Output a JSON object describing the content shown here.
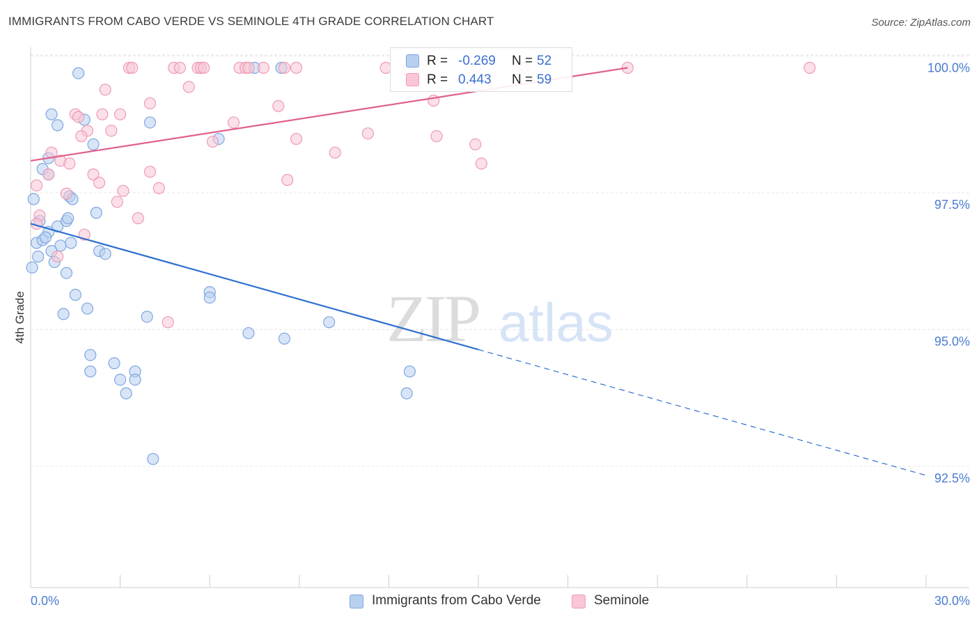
{
  "title": "IMMIGRANTS FROM CABO VERDE VS SEMINOLE 4TH GRADE CORRELATION CHART",
  "source": "Source: ZipAtlas.com",
  "watermark": {
    "zip": "ZIP",
    "atlas": "atlas"
  },
  "colors": {
    "blue_fill": "#b8d0f0",
    "blue_stroke": "#7ea6e0",
    "blue_line": "#2d6fd0",
    "pink_fill": "#f8c6d6",
    "pink_stroke": "#ee9ab6",
    "pink_line": "#e0608a",
    "axis_text": "#4a7cd0",
    "grid": "#e6e6e6"
  },
  "legend": {
    "rows": [
      {
        "r_label": "R =",
        "r_value": "-0.269",
        "n_label": "N =",
        "n_value": "52",
        "color": "blue"
      },
      {
        "r_label": "R =",
        "r_value": " 0.443",
        "n_label": "N =",
        "n_value": "59",
        "color": "pink"
      }
    ]
  },
  "bottom_legend": [
    {
      "label": "Immigrants from Cabo Verde",
      "color": "blue"
    },
    {
      "label": "Seminole",
      "color": "pink"
    }
  ],
  "chart_data": {
    "type": "scatter",
    "title": "IMMIGRANTS FROM CABO VERDE VS SEMINOLE 4TH GRADE CORRELATION CHART",
    "xlabel": "",
    "ylabel": "4th Grade",
    "xlim": [
      0,
      30
    ],
    "ylim": [
      90.5,
      100.45
    ],
    "x_tick_labels": [
      "0.0%",
      "30.0%"
    ],
    "y_ticks": [
      92.5,
      95.0,
      97.5,
      100.0
    ],
    "y_tick_labels": [
      "92.5%",
      "95.0%",
      "97.5%",
      "100.0%"
    ],
    "grid": true,
    "legend_position": "top-center",
    "series": [
      {
        "name": "Immigrants from Cabo Verde",
        "color": "blue",
        "trend": {
          "x0": 0.0,
          "y0": 97.15,
          "x1": 15.0,
          "y1": 94.85,
          "dash_to_x": 30.0,
          "dash_to_y": 92.55
        },
        "points": [
          [
            1.6,
            99.9
          ],
          [
            8.4,
            100.0
          ],
          [
            7.5,
            100.0
          ],
          [
            0.7,
            99.15
          ],
          [
            0.9,
            98.95
          ],
          [
            1.8,
            99.05
          ],
          [
            4.0,
            99.0
          ],
          [
            2.1,
            98.6
          ],
          [
            6.3,
            98.7
          ],
          [
            0.6,
            98.35
          ],
          [
            0.4,
            98.15
          ],
          [
            0.6,
            98.05
          ],
          [
            0.1,
            97.6
          ],
          [
            1.3,
            97.65
          ],
          [
            1.4,
            97.6
          ],
          [
            2.2,
            97.35
          ],
          [
            0.3,
            97.2
          ],
          [
            0.6,
            97.0
          ],
          [
            0.9,
            97.1
          ],
          [
            1.2,
            97.2
          ],
          [
            1.25,
            97.25
          ],
          [
            0.2,
            96.8
          ],
          [
            0.4,
            96.85
          ],
          [
            0.5,
            96.9
          ],
          [
            1.0,
            96.75
          ],
          [
            1.35,
            96.8
          ],
          [
            2.3,
            96.65
          ],
          [
            2.5,
            96.6
          ],
          [
            0.7,
            96.65
          ],
          [
            0.25,
            96.55
          ],
          [
            0.8,
            96.45
          ],
          [
            1.2,
            96.25
          ],
          [
            0.05,
            96.35
          ],
          [
            1.5,
            95.85
          ],
          [
            6.0,
            95.9
          ],
          [
            6.0,
            95.8
          ],
          [
            1.9,
            95.6
          ],
          [
            1.1,
            95.5
          ],
          [
            3.9,
            95.45
          ],
          [
            10.0,
            95.35
          ],
          [
            7.3,
            95.15
          ],
          [
            8.5,
            95.05
          ],
          [
            2.0,
            94.75
          ],
          [
            2.8,
            94.6
          ],
          [
            3.5,
            94.45
          ],
          [
            2.0,
            94.45
          ],
          [
            12.7,
            94.45
          ],
          [
            3.0,
            94.3
          ],
          [
            3.5,
            94.3
          ],
          [
            3.2,
            94.05
          ],
          [
            12.6,
            94.05
          ],
          [
            4.1,
            92.85
          ]
        ]
      },
      {
        "name": "Seminole",
        "color": "pink",
        "trend": {
          "x0": 0.0,
          "y0": 98.3,
          "x1": 20.0,
          "y1": 100.0
        },
        "points": [
          [
            3.3,
            100.0
          ],
          [
            3.4,
            100.0
          ],
          [
            4.8,
            100.0
          ],
          [
            5.0,
            100.0
          ],
          [
            5.6,
            100.0
          ],
          [
            5.7,
            100.0
          ],
          [
            5.8,
            100.0
          ],
          [
            7.0,
            100.0
          ],
          [
            7.2,
            100.0
          ],
          [
            7.3,
            100.0
          ],
          [
            7.8,
            100.0
          ],
          [
            8.5,
            100.0
          ],
          [
            8.9,
            100.0
          ],
          [
            11.9,
            100.0
          ],
          [
            14.9,
            100.0
          ],
          [
            16.5,
            100.0
          ],
          [
            20.0,
            100.0
          ],
          [
            26.1,
            100.0
          ],
          [
            12.6,
            99.95
          ],
          [
            13.0,
            100.0
          ],
          [
            2.5,
            99.6
          ],
          [
            5.3,
            99.65
          ],
          [
            4.0,
            99.35
          ],
          [
            8.3,
            99.3
          ],
          [
            13.5,
            99.4
          ],
          [
            3.0,
            99.15
          ],
          [
            1.5,
            99.15
          ],
          [
            1.6,
            99.1
          ],
          [
            2.4,
            99.15
          ],
          [
            6.8,
            99.0
          ],
          [
            1.9,
            98.85
          ],
          [
            2.7,
            98.85
          ],
          [
            1.7,
            98.75
          ],
          [
            6.1,
            98.65
          ],
          [
            8.9,
            98.7
          ],
          [
            11.3,
            98.8
          ],
          [
            13.6,
            98.75
          ],
          [
            14.9,
            98.6
          ],
          [
            10.2,
            98.45
          ],
          [
            0.7,
            98.45
          ],
          [
            1.0,
            98.3
          ],
          [
            1.3,
            98.25
          ],
          [
            15.1,
            98.25
          ],
          [
            0.6,
            98.05
          ],
          [
            2.1,
            98.05
          ],
          [
            4.0,
            98.1
          ],
          [
            8.6,
            97.95
          ],
          [
            0.2,
            97.85
          ],
          [
            2.3,
            97.9
          ],
          [
            4.3,
            97.8
          ],
          [
            3.1,
            97.75
          ],
          [
            1.2,
            97.7
          ],
          [
            2.9,
            97.55
          ],
          [
            0.3,
            97.3
          ],
          [
            3.6,
            97.25
          ],
          [
            0.2,
            97.15
          ],
          [
            1.8,
            96.95
          ],
          [
            0.9,
            96.55
          ],
          [
            4.6,
            95.35
          ]
        ]
      }
    ]
  }
}
